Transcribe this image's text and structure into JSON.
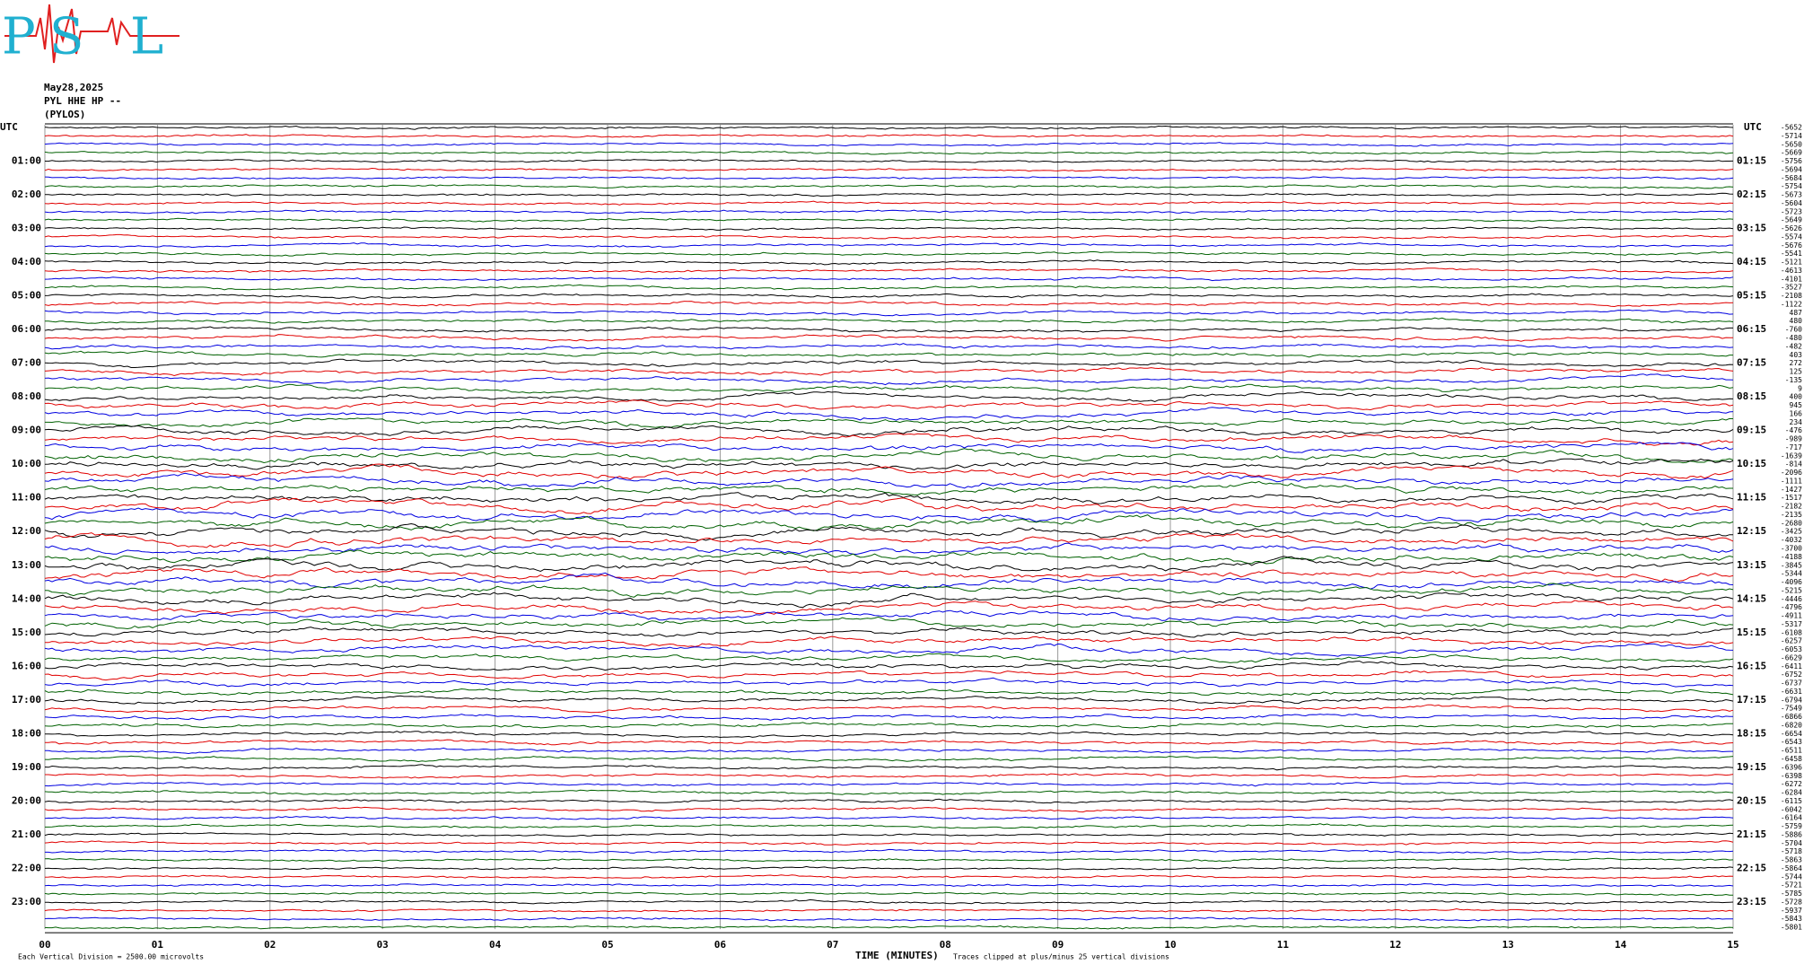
{
  "logo": {
    "letters": [
      "P",
      "S",
      "L"
    ]
  },
  "header": {
    "date": "May28,2025",
    "station": "PYL HHE HP --",
    "place": "(PYLOS)"
  },
  "chart_data": {
    "type": "helicorder",
    "left_corner": "UTC",
    "right_corner": "UTC",
    "left_labels": [
      "01:00",
      "02:00",
      "03:00",
      "04:00",
      "05:00",
      "06:00",
      "07:00",
      "08:00",
      "09:00",
      "10:00",
      "11:00",
      "12:00",
      "13:00",
      "14:00",
      "15:00",
      "16:00",
      "17:00",
      "18:00",
      "19:00",
      "20:00",
      "21:00",
      "22:00",
      "23:00"
    ],
    "right_labels": [
      "01:15",
      "02:15",
      "03:15",
      "04:15",
      "05:15",
      "06:15",
      "07:15",
      "08:15",
      "09:15",
      "10:15",
      "11:15",
      "12:15",
      "13:15",
      "14:15",
      "15:15",
      "16:15",
      "17:15",
      "18:15",
      "19:15",
      "20:15",
      "21:15",
      "22:15",
      "23:15"
    ],
    "trace_offsets": [
      -5652,
      -5714,
      -5650,
      -5669,
      -5756,
      -5694,
      -5684,
      -5754,
      -5673,
      -5604,
      -5723,
      -5649,
      -5626,
      -5574,
      -5676,
      -5541,
      -5121,
      -4613,
      -4101,
      -3527,
      -2108,
      -1122,
      487,
      480,
      -760,
      -480,
      -482,
      403,
      272,
      125,
      -135,
      9,
      400,
      945,
      166,
      234,
      -476,
      -989,
      -717,
      -1639,
      -814,
      -2096,
      -1111,
      -1427,
      -1517,
      -2182,
      -2135,
      -2680,
      -3425,
      -4032,
      -3700,
      -4188,
      -3845,
      -5344,
      -4096,
      -5215,
      -4446,
      -4796,
      -4911,
      -5317,
      -6108,
      -6257,
      -6053,
      -6629,
      -6411,
      -6752,
      -6737,
      -6631,
      -6794,
      -7549,
      -6866,
      -6820,
      -6654,
      -6543,
      -6511,
      -6458,
      -6396,
      -6398,
      -6272,
      -6284,
      -6115,
      -6042,
      -6164,
      -5759,
      -5886,
      -5704,
      -5718,
      -5863,
      -5864,
      -5744,
      -5721,
      -5785,
      -5728,
      -5937,
      -5843,
      -5801
    ],
    "trace_colors": [
      "#000000",
      "#e00000",
      "#0000e0",
      "#006000"
    ],
    "x_labels": [
      "00",
      "01",
      "02",
      "03",
      "04",
      "05",
      "06",
      "07",
      "08",
      "09",
      "10",
      "11",
      "12",
      "13",
      "14",
      "15"
    ],
    "xlabel": "TIME (MINUTES)",
    "scale_note": "Each Vertical Division = 2500.00 microvolts",
    "clip_note": "Traces clipped at plus/minus 25 vertical divisions"
  }
}
